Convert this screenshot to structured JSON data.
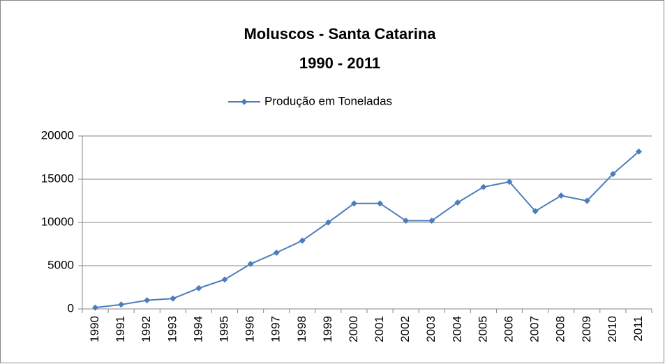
{
  "chart_data": {
    "type": "line",
    "title": "Moluscos  - Santa Catarina",
    "subtitle": "1990 - 2011",
    "categories": [
      "1990",
      "1991",
      "1992",
      "1993",
      "1994",
      "1995",
      "1996",
      "1997",
      "1998",
      "1999",
      "2000",
      "2001",
      "2002",
      "2003",
      "2004",
      "2005",
      "2006",
      "2007",
      "2008",
      "2009",
      "2010",
      "2011"
    ],
    "series": [
      {
        "name": "Produção em Toneladas",
        "color": "#4a7ebb",
        "values": [
          150,
          500,
          1000,
          1200,
          2400,
          3400,
          5200,
          6500,
          7900,
          10000,
          12200,
          12200,
          10200,
          10200,
          12300,
          14100,
          14700,
          11300,
          13100,
          12500,
          15600,
          18200
        ]
      }
    ],
    "ylim": [
      0,
      20000
    ],
    "yticks": [
      0,
      5000,
      10000,
      15000,
      20000
    ],
    "grid": true,
    "legend": "top"
  }
}
